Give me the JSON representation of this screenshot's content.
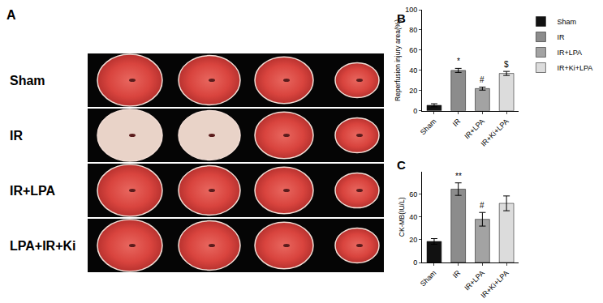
{
  "figure": {
    "panel_label": "A",
    "row_labels": [
      "Sham",
      "IR",
      "IR+LPA",
      "LPA+IR+Ki"
    ]
  },
  "chart_data": [
    {
      "type": "bar",
      "panel_label": "B",
      "y_label": "Reperfusion injury area(%)",
      "categories": [
        "Sham",
        "IR",
        "IR+LPA",
        "IR+Ki+LPA"
      ],
      "values": [
        5.5,
        40,
        22,
        37
      ],
      "errors": [
        1.5,
        2,
        1.5,
        2
      ],
      "colors": [
        "#111111",
        "#8c8c8c",
        "#a3a3a3",
        "#dcdcdc"
      ],
      "ylim": [
        0,
        100
      ],
      "yticks": [
        0,
        20,
        40,
        60,
        80,
        100
      ],
      "legend": "top right",
      "annotations": [
        {
          "category": "IR",
          "text": "*"
        },
        {
          "category": "IR+LPA",
          "text": "#"
        },
        {
          "category": "IR+Ki+LPA",
          "text": "$"
        }
      ]
    },
    {
      "type": "bar",
      "panel_label": "C",
      "y_label": "CK-MB(IU/L)",
      "categories": [
        "Sham",
        "IR",
        "IR+LPA",
        "IR+Ki+LPA"
      ],
      "values": [
        18.5,
        64.5,
        38,
        52
      ],
      "errors": [
        2.5,
        5.5,
        6,
        6.5
      ],
      "colors": [
        "#111111",
        "#8c8c8c",
        "#a3a3a3",
        "#dcdcdc"
      ],
      "ylim": [
        0,
        80
      ],
      "yticks": [
        0,
        20,
        40,
        60
      ],
      "annotations": [
        {
          "category": "IR",
          "text": "**"
        },
        {
          "category": "IR+LPA",
          "text": "#"
        }
      ]
    }
  ]
}
